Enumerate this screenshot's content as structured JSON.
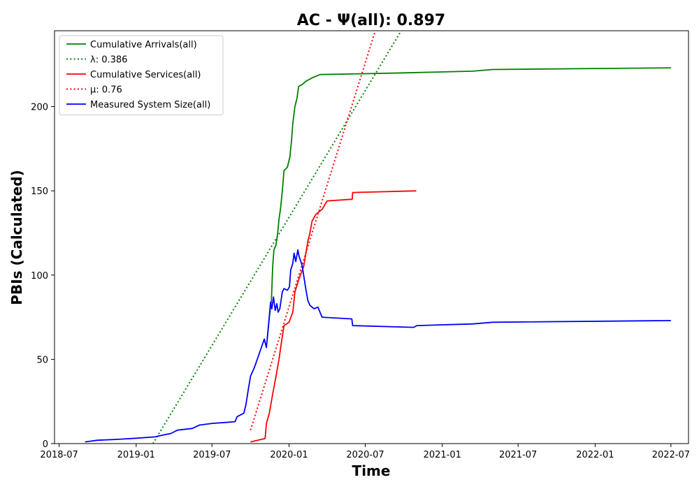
{
  "chart_data": {
    "type": "line",
    "title": "AC -  Ψ(all): 0.897",
    "xlabel": "Time",
    "ylabel": "PBIs (Calculated)",
    "x_type": "date",
    "xlim": [
      "2018-06-20",
      "2022-08-12"
    ],
    "ylim": [
      0,
      245
    ],
    "x_ticks": [
      {
        "date": "2018-07-01",
        "label": "2018-07"
      },
      {
        "date": "2019-01-01",
        "label": "2019-01"
      },
      {
        "date": "2019-07-01",
        "label": "2019-07"
      },
      {
        "date": "2020-01-01",
        "label": "2020-01"
      },
      {
        "date": "2020-07-01",
        "label": "2020-07"
      },
      {
        "date": "2021-01-01",
        "label": "2021-01"
      },
      {
        "date": "2021-07-01",
        "label": "2021-07"
      },
      {
        "date": "2022-01-01",
        "label": "2022-01"
      },
      {
        "date": "2022-07-01",
        "label": "2022-07"
      }
    ],
    "y_ticks": [
      0,
      50,
      100,
      150,
      200
    ],
    "grid": false,
    "legend_position": "top-left",
    "series": [
      {
        "name": "Cumulative Arrivals(all)",
        "color": "#008000",
        "style": "solid",
        "points": [
          [
            "2019-11-10",
            62
          ],
          [
            "2019-11-15",
            75
          ],
          [
            "2019-11-20",
            85
          ],
          [
            "2019-11-23",
            105
          ],
          [
            "2019-11-26",
            115
          ],
          [
            "2019-12-01",
            118
          ],
          [
            "2019-12-05",
            125
          ],
          [
            "2019-12-08",
            133
          ],
          [
            "2019-12-12",
            140
          ],
          [
            "2019-12-16",
            150
          ],
          [
            "2019-12-20",
            162
          ],
          [
            "2019-12-28",
            164
          ],
          [
            "2020-01-03",
            170
          ],
          [
            "2020-01-07",
            180
          ],
          [
            "2020-01-10",
            190
          ],
          [
            "2020-01-15",
            200
          ],
          [
            "2020-01-20",
            205
          ],
          [
            "2020-01-24",
            212
          ],
          [
            "2020-02-01",
            213
          ],
          [
            "2020-02-10",
            215
          ],
          [
            "2020-02-25",
            217
          ],
          [
            "2020-03-15",
            219
          ],
          [
            "2020-07-01",
            219.5
          ],
          [
            "2020-10-01",
            220
          ],
          [
            "2021-03-15",
            221
          ],
          [
            "2021-05-01",
            222
          ],
          [
            "2022-07-01",
            223
          ]
        ]
      },
      {
        "name": "λ: 0.386",
        "color": "#008000",
        "style": "dotted",
        "points": [
          [
            "2019-02-10",
            0
          ],
          [
            "2020-09-25",
            245
          ]
        ]
      },
      {
        "name": "Cumulative Services(all)",
        "color": "#ff0000",
        "style": "solid",
        "points": [
          [
            "2019-10-01",
            1
          ],
          [
            "2019-11-05",
            3
          ],
          [
            "2019-11-08",
            12
          ],
          [
            "2019-11-15",
            18
          ],
          [
            "2019-11-22",
            28
          ],
          [
            "2019-12-01",
            40
          ],
          [
            "2019-12-08",
            50
          ],
          [
            "2019-12-15",
            62
          ],
          [
            "2019-12-20",
            70
          ],
          [
            "2020-01-01",
            72
          ],
          [
            "2020-01-10",
            78
          ],
          [
            "2020-01-15",
            90
          ],
          [
            "2020-01-25",
            98
          ],
          [
            "2020-02-05",
            105
          ],
          [
            "2020-02-15",
            120
          ],
          [
            "2020-02-20",
            125
          ],
          [
            "2020-02-25",
            132
          ],
          [
            "2020-03-05",
            136
          ],
          [
            "2020-03-20",
            139
          ],
          [
            "2020-04-01",
            144
          ],
          [
            "2020-05-31",
            145
          ],
          [
            "2020-06-01",
            149
          ],
          [
            "2020-10-31",
            150
          ]
        ]
      },
      {
        "name": "μ: 0.76",
        "color": "#ff0000",
        "style": "dotted",
        "points": [
          [
            "2019-10-01",
            8
          ],
          [
            "2020-07-25",
            245
          ]
        ]
      },
      {
        "name": "Measured System Size(all)",
        "color": "#0000ff",
        "style": "solid",
        "points": [
          [
            "2018-09-01",
            1
          ],
          [
            "2018-10-01",
            2
          ],
          [
            "2018-11-15",
            2.5
          ],
          [
            "2019-01-01",
            3.2
          ],
          [
            "2019-02-15",
            4
          ],
          [
            "2019-03-05",
            5
          ],
          [
            "2019-03-25",
            6
          ],
          [
            "2019-04-10",
            8
          ],
          [
            "2019-05-15",
            9
          ],
          [
            "2019-06-01",
            11
          ],
          [
            "2019-07-01",
            12
          ],
          [
            "2019-08-01",
            12.5
          ],
          [
            "2019-08-25",
            13
          ],
          [
            "2019-08-30",
            16
          ],
          [
            "2019-09-15",
            18
          ],
          [
            "2019-09-20",
            23
          ],
          [
            "2019-09-25",
            31
          ],
          [
            "2019-10-01",
            40
          ],
          [
            "2019-10-10",
            45
          ],
          [
            "2019-10-20",
            52
          ],
          [
            "2019-10-27",
            57
          ],
          [
            "2019-11-03",
            62
          ],
          [
            "2019-11-08",
            57
          ],
          [
            "2019-11-13",
            70
          ],
          [
            "2019-11-18",
            84
          ],
          [
            "2019-11-21",
            80
          ],
          [
            "2019-11-25",
            87
          ],
          [
            "2019-11-29",
            79
          ],
          [
            "2019-12-03",
            83
          ],
          [
            "2019-12-06",
            78
          ],
          [
            "2019-12-10",
            80
          ],
          [
            "2019-12-16",
            90
          ],
          [
            "2019-12-20",
            92
          ],
          [
            "2019-12-28",
            91
          ],
          [
            "2020-01-02",
            93
          ],
          [
            "2020-01-05",
            103
          ],
          [
            "2020-01-10",
            107
          ],
          [
            "2020-01-13",
            113
          ],
          [
            "2020-01-17",
            108
          ],
          [
            "2020-01-22",
            115
          ],
          [
            "2020-01-25",
            111
          ],
          [
            "2020-02-01",
            106
          ],
          [
            "2020-02-05",
            100
          ],
          [
            "2020-02-10",
            92
          ],
          [
            "2020-02-15",
            85
          ],
          [
            "2020-02-20",
            82
          ],
          [
            "2020-03-01",
            80
          ],
          [
            "2020-03-10",
            81
          ],
          [
            "2020-03-20",
            75
          ],
          [
            "2020-05-30",
            74
          ],
          [
            "2020-06-01",
            70
          ],
          [
            "2020-10-25",
            69
          ],
          [
            "2020-11-01",
            70
          ],
          [
            "2021-03-15",
            71
          ],
          [
            "2021-05-01",
            72
          ],
          [
            "2022-07-01",
            73
          ]
        ]
      }
    ]
  }
}
